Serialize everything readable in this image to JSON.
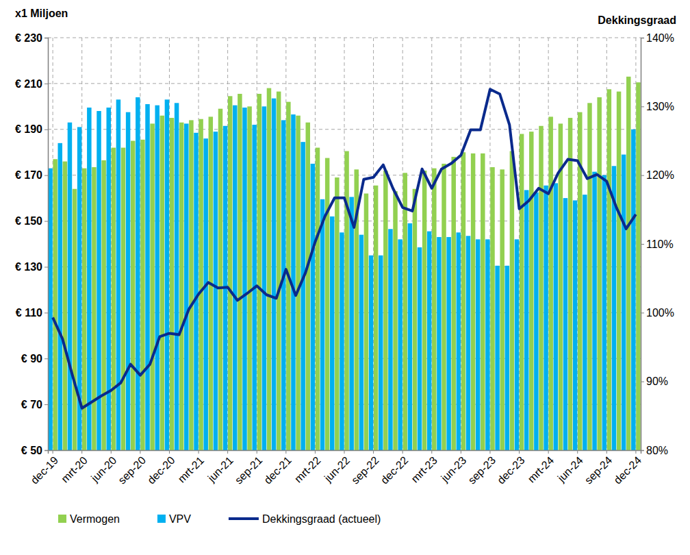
{
  "chart_data": {
    "type": "bar",
    "y_label": "x1 Miljoen",
    "y2_label": "Dekkingsgraad",
    "categories": [
      "dec-19",
      null,
      null,
      "mrt-20",
      null,
      null,
      "jun-20",
      null,
      null,
      "sep-20",
      null,
      null,
      "dec-20",
      null,
      null,
      "mrt-21",
      null,
      null,
      "jun-21",
      null,
      null,
      "sep-21",
      null,
      null,
      "dec-21",
      null,
      null,
      "mrt-22",
      null,
      null,
      "jun-22",
      null,
      null,
      "sep-22",
      null,
      null,
      "dec-22",
      null,
      null,
      "mrt-23",
      null,
      null,
      "jun-23",
      null,
      null,
      "sep-23",
      null,
      null,
      "dec-23",
      null,
      null,
      "mrt-24",
      null,
      null,
      "jun-24",
      null,
      null,
      "sep-24",
      null,
      null,
      "dec-24"
    ],
    "series": [
      {
        "name": "Vermogen",
        "type": "bar",
        "color": "#92d050",
        "values": [
          177,
          176,
          164,
          173,
          173.5,
          176.5,
          182,
          182,
          185,
          185.5,
          192.5,
          196,
          195,
          193,
          194,
          194.5,
          195.5,
          199,
          204.5,
          205.5,
          200,
          205.5,
          208,
          206.5,
          202,
          196,
          193,
          182,
          177.5,
          169,
          180.5,
          172.5,
          162,
          165.5,
          172,
          163,
          171,
          164,
          172,
          173,
          175,
          178,
          180,
          179.5,
          179.5,
          173.5,
          172.5,
          180.5,
          188,
          189,
          191.5,
          195.5,
          192.5,
          195,
          197.5,
          201.5,
          204,
          207.5,
          206.5,
          213,
          210.5
        ]
      },
      {
        "name": "VPV",
        "type": "bar",
        "color": "#00b0f0",
        "values": [
          173,
          184,
          193,
          191,
          199.5,
          198,
          199.5,
          203,
          197.5,
          204,
          201,
          200.5,
          203,
          201.5,
          192.5,
          188.5,
          186,
          189,
          191.5,
          200.5,
          199.5,
          192,
          200,
          203.5,
          194,
          196.5,
          184.5,
          175,
          159.5,
          152,
          145,
          160.5,
          144,
          135,
          135,
          146.5,
          142,
          149,
          138.5,
          145.5,
          143,
          143,
          145,
          143.5,
          142,
          142,
          130.5,
          130.5,
          142,
          163.5,
          162.5,
          165.5,
          166.5,
          160,
          159,
          161.5,
          171.5,
          170,
          174,
          179,
          190
        ]
      },
      {
        "name": "Dekkingsgraad (actueel)",
        "type": "line",
        "axis": "y2",
        "color": "#0a2a8c",
        "values": [
          99.3,
          96.2,
          91,
          86.1,
          87,
          87.9,
          88.7,
          89.8,
          92.5,
          90.9,
          92.5,
          96.5,
          97,
          96.8,
          100.5,
          102.7,
          104.4,
          103.6,
          103.7,
          101.8,
          102.8,
          103.9,
          102.6,
          102.1,
          106.3,
          102.5,
          105.8,
          110.3,
          114,
          116.7,
          116.7,
          112.4,
          119.4,
          119.7,
          121.5,
          118.1,
          115.3,
          114.8,
          120.9,
          118.1,
          120.9,
          121.7,
          122.9,
          126.6,
          126.6,
          132.5,
          131.8,
          127.3,
          115.1,
          116.3,
          118.1,
          117.3,
          120.3,
          122.3,
          122.1,
          119.5,
          120.1,
          119.1,
          115.3,
          112.2,
          114.3
        ]
      }
    ],
    "ylim": [
      50,
      230
    ],
    "yticks": [
      {
        "value": 50,
        "label": "€ 50"
      },
      {
        "value": 70,
        "label": "€ 70"
      },
      {
        "value": 90,
        "label": "€ 90"
      },
      {
        "value": 110,
        "label": "€ 110"
      },
      {
        "value": 130,
        "label": "€ 130"
      },
      {
        "value": 150,
        "label": "€ 150"
      },
      {
        "value": 170,
        "label": "€ 170"
      },
      {
        "value": 190,
        "label": "€ 190"
      },
      {
        "value": 210,
        "label": "€ 210"
      },
      {
        "value": 230,
        "label": "€ 230"
      }
    ],
    "y2lim": [
      80,
      140
    ],
    "y2ticks": [
      {
        "value": 80,
        "label": "80%"
      },
      {
        "value": 90,
        "label": "90%"
      },
      {
        "value": 100,
        "label": "100%"
      },
      {
        "value": 110,
        "label": "110%"
      },
      {
        "value": 120,
        "label": "120%"
      },
      {
        "value": 130,
        "label": "130%"
      },
      {
        "value": 140,
        "label": "140%"
      }
    ],
    "grid": true,
    "legend": "bottom"
  }
}
